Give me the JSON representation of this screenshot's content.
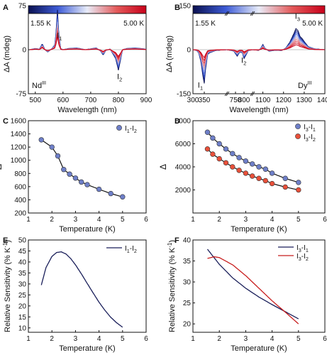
{
  "chart_data": [
    {
      "panel": "A",
      "type": "line",
      "xlabel": "Wavelength (nm)",
      "ylabel": "ΔA (mdeg)",
      "xlim": [
        475,
        900
      ],
      "ylim": [
        -75,
        75
      ],
      "xticks": [
        500,
        600,
        700,
        800,
        900
      ],
      "yticks": [
        -75,
        0,
        75
      ],
      "colorbar": {
        "min_label": "1.55 K",
        "max_label": "5.00 K",
        "colors": [
          "#0a1050",
          "#3d5bd6",
          "#e8ecf8",
          "#e45a5a",
          "#c8001a"
        ]
      },
      "annotations": [
        "NdIII",
        "I1",
        "I2"
      ],
      "series": [
        {
          "x": [
            480,
            500,
            515,
            525,
            535,
            545,
            560,
            570,
            575,
            580,
            585,
            592,
            600,
            620,
            650,
            680,
            720,
            735,
            745,
            755,
            770,
            790,
            800,
            810,
            815,
            830,
            860,
            900
          ],
          "values": [
            0,
            2,
            1,
            10,
            0,
            -4,
            2,
            8,
            30,
            68,
            25,
            2,
            0,
            2,
            3,
            0,
            3,
            -2,
            -9,
            -1,
            1,
            -15,
            -35,
            -12,
            0,
            2,
            3,
            1
          ]
        }
      ]
    },
    {
      "panel": "B",
      "type": "line",
      "xlabel": "Wavelength (nm)",
      "ylabel": "ΔA (mdeg)",
      "ylim": [
        -150,
        150
      ],
      "yticks": [
        -150,
        0,
        150
      ],
      "xticks": [
        300,
        350,
        750,
        800,
        1100,
        1200,
        1300,
        1400
      ],
      "broken_axis": [
        {
          "from": 300,
          "to": 450
        },
        {
          "from": 700,
          "to": 850
        },
        {
          "from": 1050,
          "to": 1400
        }
      ],
      "colorbar": {
        "min_label": "1.55 K",
        "max_label": "5.00 K"
      },
      "annotations": [
        "I1",
        "I2",
        "I3",
        "DyIII"
      ],
      "series": [
        {
          "x": [
            300,
            315,
            325,
            335,
            345,
            350,
            355,
            365,
            375,
            400,
            425,
            450,
            700,
            720,
            740,
            760,
            775,
            790,
            800,
            810,
            825,
            850,
            1050,
            1080,
            1090,
            1100,
            1110,
            1130,
            1160,
            1190,
            1210,
            1230,
            1250,
            1260,
            1270,
            1280,
            1290,
            1300,
            1320,
            1350,
            1380,
            1400
          ],
          "values": [
            0,
            -2,
            -10,
            -40,
            -95,
            -115,
            -70,
            -15,
            -10,
            -3,
            -1,
            0,
            0,
            -2,
            -5,
            -22,
            -8,
            -10,
            -30,
            -20,
            -3,
            0,
            0,
            -2,
            5,
            18,
            5,
            -5,
            -2,
            -3,
            5,
            25,
            55,
            72,
            65,
            45,
            38,
            28,
            10,
            3,
            1,
            0
          ]
        }
      ]
    },
    {
      "panel": "C",
      "type": "scatter",
      "xlabel": "Temperature (K)",
      "ylabel": "Δ",
      "xlim": [
        1,
        6
      ],
      "ylim": [
        200,
        1600
      ],
      "xticks": [
        1,
        2,
        3,
        4,
        5,
        6
      ],
      "yticks": [
        200,
        400,
        600,
        800,
        1000,
        1200,
        1400,
        1600
      ],
      "series": [
        {
          "name": "I1-I2",
          "x": [
            1.55,
            2.0,
            2.25,
            2.5,
            2.75,
            3.0,
            3.25,
            3.5,
            4.0,
            4.5,
            5.0
          ],
          "values": [
            1310,
            1200,
            1065,
            860,
            790,
            730,
            670,
            630,
            560,
            495,
            445
          ],
          "color": "#6e7fc8"
        }
      ]
    },
    {
      "panel": "D",
      "type": "scatter",
      "xlabel": "Temperature (K)",
      "ylabel": "Δ",
      "xlim": [
        1,
        6
      ],
      "ylim": [
        0,
        8000
      ],
      "xticks": [
        1,
        2,
        3,
        4,
        5,
        6
      ],
      "yticks": [
        2000,
        4000,
        6000,
        8000
      ],
      "series": [
        {
          "name": "I3-I1",
          "x": [
            1.55,
            1.75,
            2.0,
            2.25,
            2.5,
            2.75,
            3.0,
            3.25,
            3.5,
            3.75,
            4.0,
            4.5,
            5.0
          ],
          "values": [
            7000,
            6500,
            6000,
            5550,
            5150,
            4800,
            4500,
            4250,
            4000,
            3800,
            3450,
            3000,
            2650
          ],
          "color": "#6e7fc8"
        },
        {
          "name": "I3-I2",
          "x": [
            1.55,
            1.75,
            2.0,
            2.25,
            2.5,
            2.75,
            3.0,
            3.25,
            3.5,
            3.75,
            4.0,
            4.5,
            5.0
          ],
          "values": [
            5550,
            5100,
            4700,
            4350,
            4000,
            3700,
            3450,
            3200,
            3000,
            2800,
            2550,
            2250,
            2000
          ],
          "color": "#e8503a"
        }
      ]
    },
    {
      "panel": "E",
      "type": "line",
      "xlabel": "Temperature (K)",
      "ylabel": "Relative Sensitivity (% K-1)",
      "xlim": [
        1,
        6
      ],
      "ylim": [
        8,
        50
      ],
      "xticks": [
        1,
        2,
        3,
        4,
        5,
        6
      ],
      "yticks": [
        10,
        15,
        20,
        25,
        30,
        35,
        40,
        45,
        50
      ],
      "series": [
        {
          "name": "I1-I2",
          "x": [
            1.55,
            1.75,
            2.0,
            2.2,
            2.4,
            2.6,
            2.8,
            3.0,
            3.25,
            3.5,
            3.75,
            4.0,
            4.25,
            4.5,
            4.75,
            5.0
          ],
          "values": [
            29.5,
            37.5,
            42.5,
            44.3,
            44.6,
            43.6,
            41.5,
            38.7,
            34.6,
            30.2,
            25.9,
            21.7,
            18.0,
            14.8,
            12.3,
            10.3
          ],
          "color": "#1a1f5a"
        }
      ]
    },
    {
      "panel": "F",
      "type": "line",
      "xlabel": "Temperature (K)",
      "ylabel": "Relative Sensitivity (% K-1)",
      "xlim": [
        1,
        6
      ],
      "ylim": [
        18,
        40
      ],
      "xticks": [
        1,
        2,
        3,
        4,
        5,
        6
      ],
      "yticks": [
        20,
        25,
        30,
        35,
        40
      ],
      "series": [
        {
          "name": "I3-I1",
          "x": [
            1.55,
            2.0,
            2.5,
            3.0,
            3.5,
            4.0,
            4.5,
            5.0
          ],
          "values": [
            37.8,
            34.2,
            31.0,
            28.5,
            26.4,
            24.6,
            22.9,
            21.2
          ],
          "color": "#1a1f5a"
        },
        {
          "name": "I3-I2",
          "x": [
            1.55,
            1.8,
            2.0,
            2.5,
            3.0,
            3.5,
            4.0,
            4.5,
            5.0
          ],
          "values": [
            35.6,
            36.0,
            35.8,
            34.1,
            31.5,
            28.5,
            25.5,
            22.8,
            20.0
          ],
          "color": "#c81e1e"
        }
      ]
    }
  ]
}
